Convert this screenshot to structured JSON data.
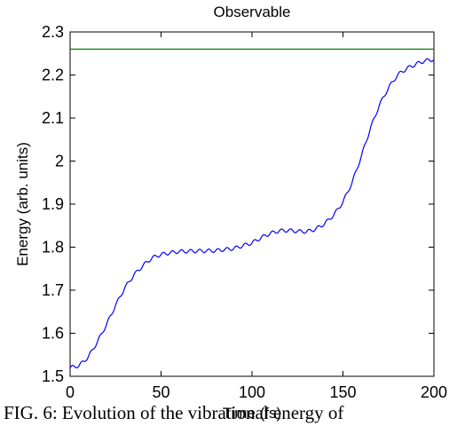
{
  "chart_data": {
    "type": "line",
    "title": "Observable",
    "xlabel": "Time (fs)",
    "ylabel": "Energy (arb. units)",
    "xlim": [
      0,
      200
    ],
    "ylim": [
      1.5,
      2.3
    ],
    "xticks": [
      0,
      50,
      100,
      150,
      200
    ],
    "yticks": [
      1.5,
      1.6,
      1.7,
      1.8,
      1.9,
      2.0,
      2.1,
      2.2,
      2.3
    ],
    "xtick_labels": [
      "0",
      "50",
      "100",
      "150",
      "200"
    ],
    "ytick_labels": [
      "1.5",
      "1.6",
      "1.7",
      "1.8",
      "1.9",
      "2",
      "2.1",
      "2.2",
      "2.3"
    ],
    "grid": false,
    "series": [
      {
        "color": "#0000ff",
        "x": [
          0,
          5,
          10,
          15,
          20,
          25,
          30,
          35,
          40,
          45,
          50,
          55,
          60,
          70,
          80,
          90,
          100,
          105,
          110,
          115,
          120,
          125,
          130,
          135,
          140,
          145,
          150,
          155,
          160,
          165,
          170,
          175,
          180,
          185,
          190,
          195,
          200
        ],
        "y": [
          1.52,
          1.525,
          1.545,
          1.58,
          1.62,
          1.665,
          1.705,
          1.735,
          1.757,
          1.775,
          1.783,
          1.787,
          1.79,
          1.791,
          1.792,
          1.797,
          1.81,
          1.822,
          1.832,
          1.838,
          1.839,
          1.837,
          1.836,
          1.842,
          1.855,
          1.875,
          1.905,
          1.95,
          2.01,
          2.075,
          2.13,
          2.17,
          2.2,
          2.215,
          2.225,
          2.233,
          2.236
        ],
        "wiggle_period": 5,
        "wiggle_amplitude": 0.004
      },
      {
        "color": "#008000",
        "x": [
          0,
          200
        ],
        "y": [
          2.26,
          2.26
        ]
      }
    ]
  },
  "caption": "FIG. 6: Evolution of the vibrational energy of"
}
